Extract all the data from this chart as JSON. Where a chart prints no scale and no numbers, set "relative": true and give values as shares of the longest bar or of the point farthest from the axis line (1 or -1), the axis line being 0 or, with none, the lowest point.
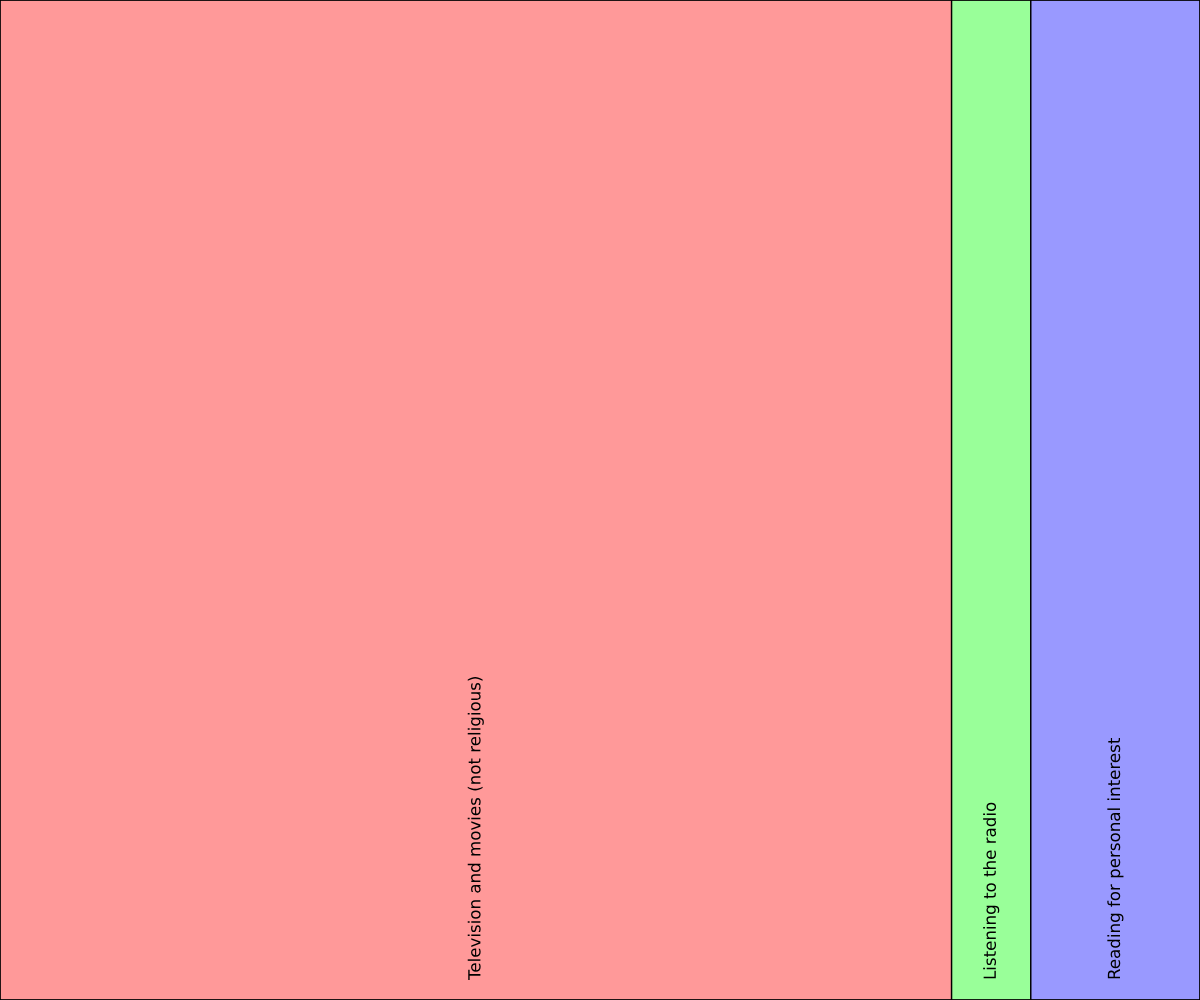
{
  "chart_data": {
    "type": "bar",
    "orientation": "horizontal",
    "stacked": true,
    "relative": true,
    "categories": [
      null
    ],
    "series": [
      {
        "name": "Television and movies (not religious)",
        "color": "#ff9999",
        "values": [
          0.793
        ]
      },
      {
        "name": "Listening to the radio",
        "color": "#99ff99",
        "values": [
          0.066
        ]
      },
      {
        "name": "Reading for personal interest",
        "color": "#9999ff",
        "values": [
          0.141
        ]
      }
    ]
  }
}
